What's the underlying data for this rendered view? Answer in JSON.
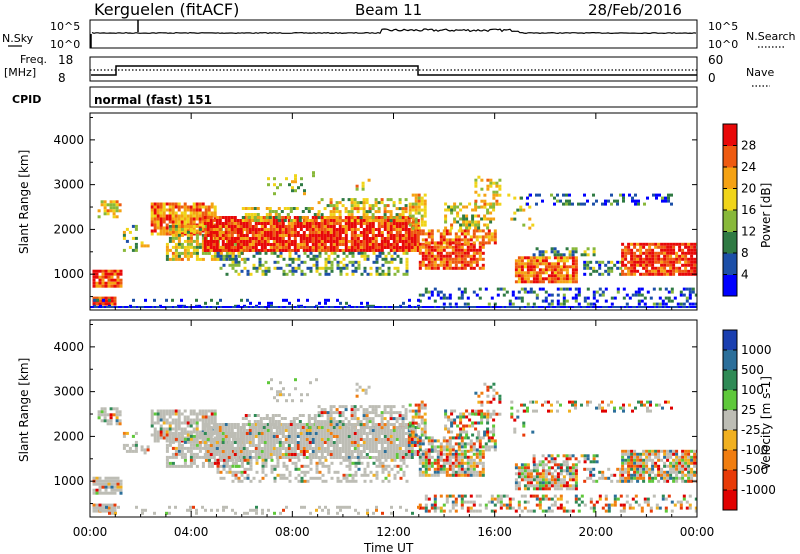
{
  "header": {
    "station": "Kerguelen (fitACF)",
    "beam": "Beam 11",
    "date": "28/Feb/2016"
  },
  "top_panels": {
    "nsky": {
      "label": "N.Sky",
      "tick_top": "10^5",
      "tick_bottom": "10^0"
    },
    "nsearch": {
      "label": "N.Search",
      "tick_top": "10^5",
      "tick_bottom": "10^0"
    },
    "freq": {
      "label_line1": "Freq.",
      "label_line2": "[MHz]",
      "tick_top": "18",
      "tick_bottom": "8"
    },
    "nave": {
      "label": "Nave",
      "tick_top": "60",
      "tick_bottom": "0"
    },
    "cpid": {
      "label": "CPID",
      "value": "normal (fast) 151"
    }
  },
  "chart_data": [
    {
      "type": "heatmap",
      "name": "Power",
      "ylabel": "Slant Range [km]",
      "yticks": [
        "1000",
        "2000",
        "3000",
        "4000"
      ],
      "ylim": [
        200,
        4600
      ],
      "xlim_hours": [
        0,
        24
      ],
      "colorbar": {
        "label": "Power [dB]",
        "ticks": [
          "4",
          "8",
          "12",
          "16",
          "20",
          "24",
          "28"
        ],
        "colors": [
          "#0000ff",
          "#1c4fa8",
          "#2f7a43",
          "#88b83a",
          "#f0d419",
          "#f5a213",
          "#ee5a10",
          "#e80808"
        ]
      },
      "grid": false
    },
    {
      "type": "heatmap",
      "name": "Velocity",
      "ylabel": "Slant Range [km]",
      "yticks": [
        "1000",
        "2000",
        "3000",
        "4000"
      ],
      "ylim": [
        200,
        4600
      ],
      "xlim_hours": [
        0,
        24
      ],
      "colorbar": {
        "label": "Velocity [m s-1]",
        "ticks": [
          "1000",
          "500",
          "100",
          "25",
          "-25",
          "-100",
          "-500",
          "-1000"
        ],
        "colors": [
          "#1a3fb0",
          "#2b6f9a",
          "#2f8a55",
          "#5fc83a",
          "#bdbdb5",
          "#f0b020",
          "#f07d10",
          "#e83a08",
          "#e00000"
        ]
      },
      "ground_scatter_color": "#bdbdb5",
      "grid": false
    }
  ],
  "xaxis": {
    "ticks": [
      "00:00",
      "04:00",
      "08:00",
      "12:00",
      "16:00",
      "20:00",
      "00:00"
    ],
    "label": "Time UT"
  }
}
